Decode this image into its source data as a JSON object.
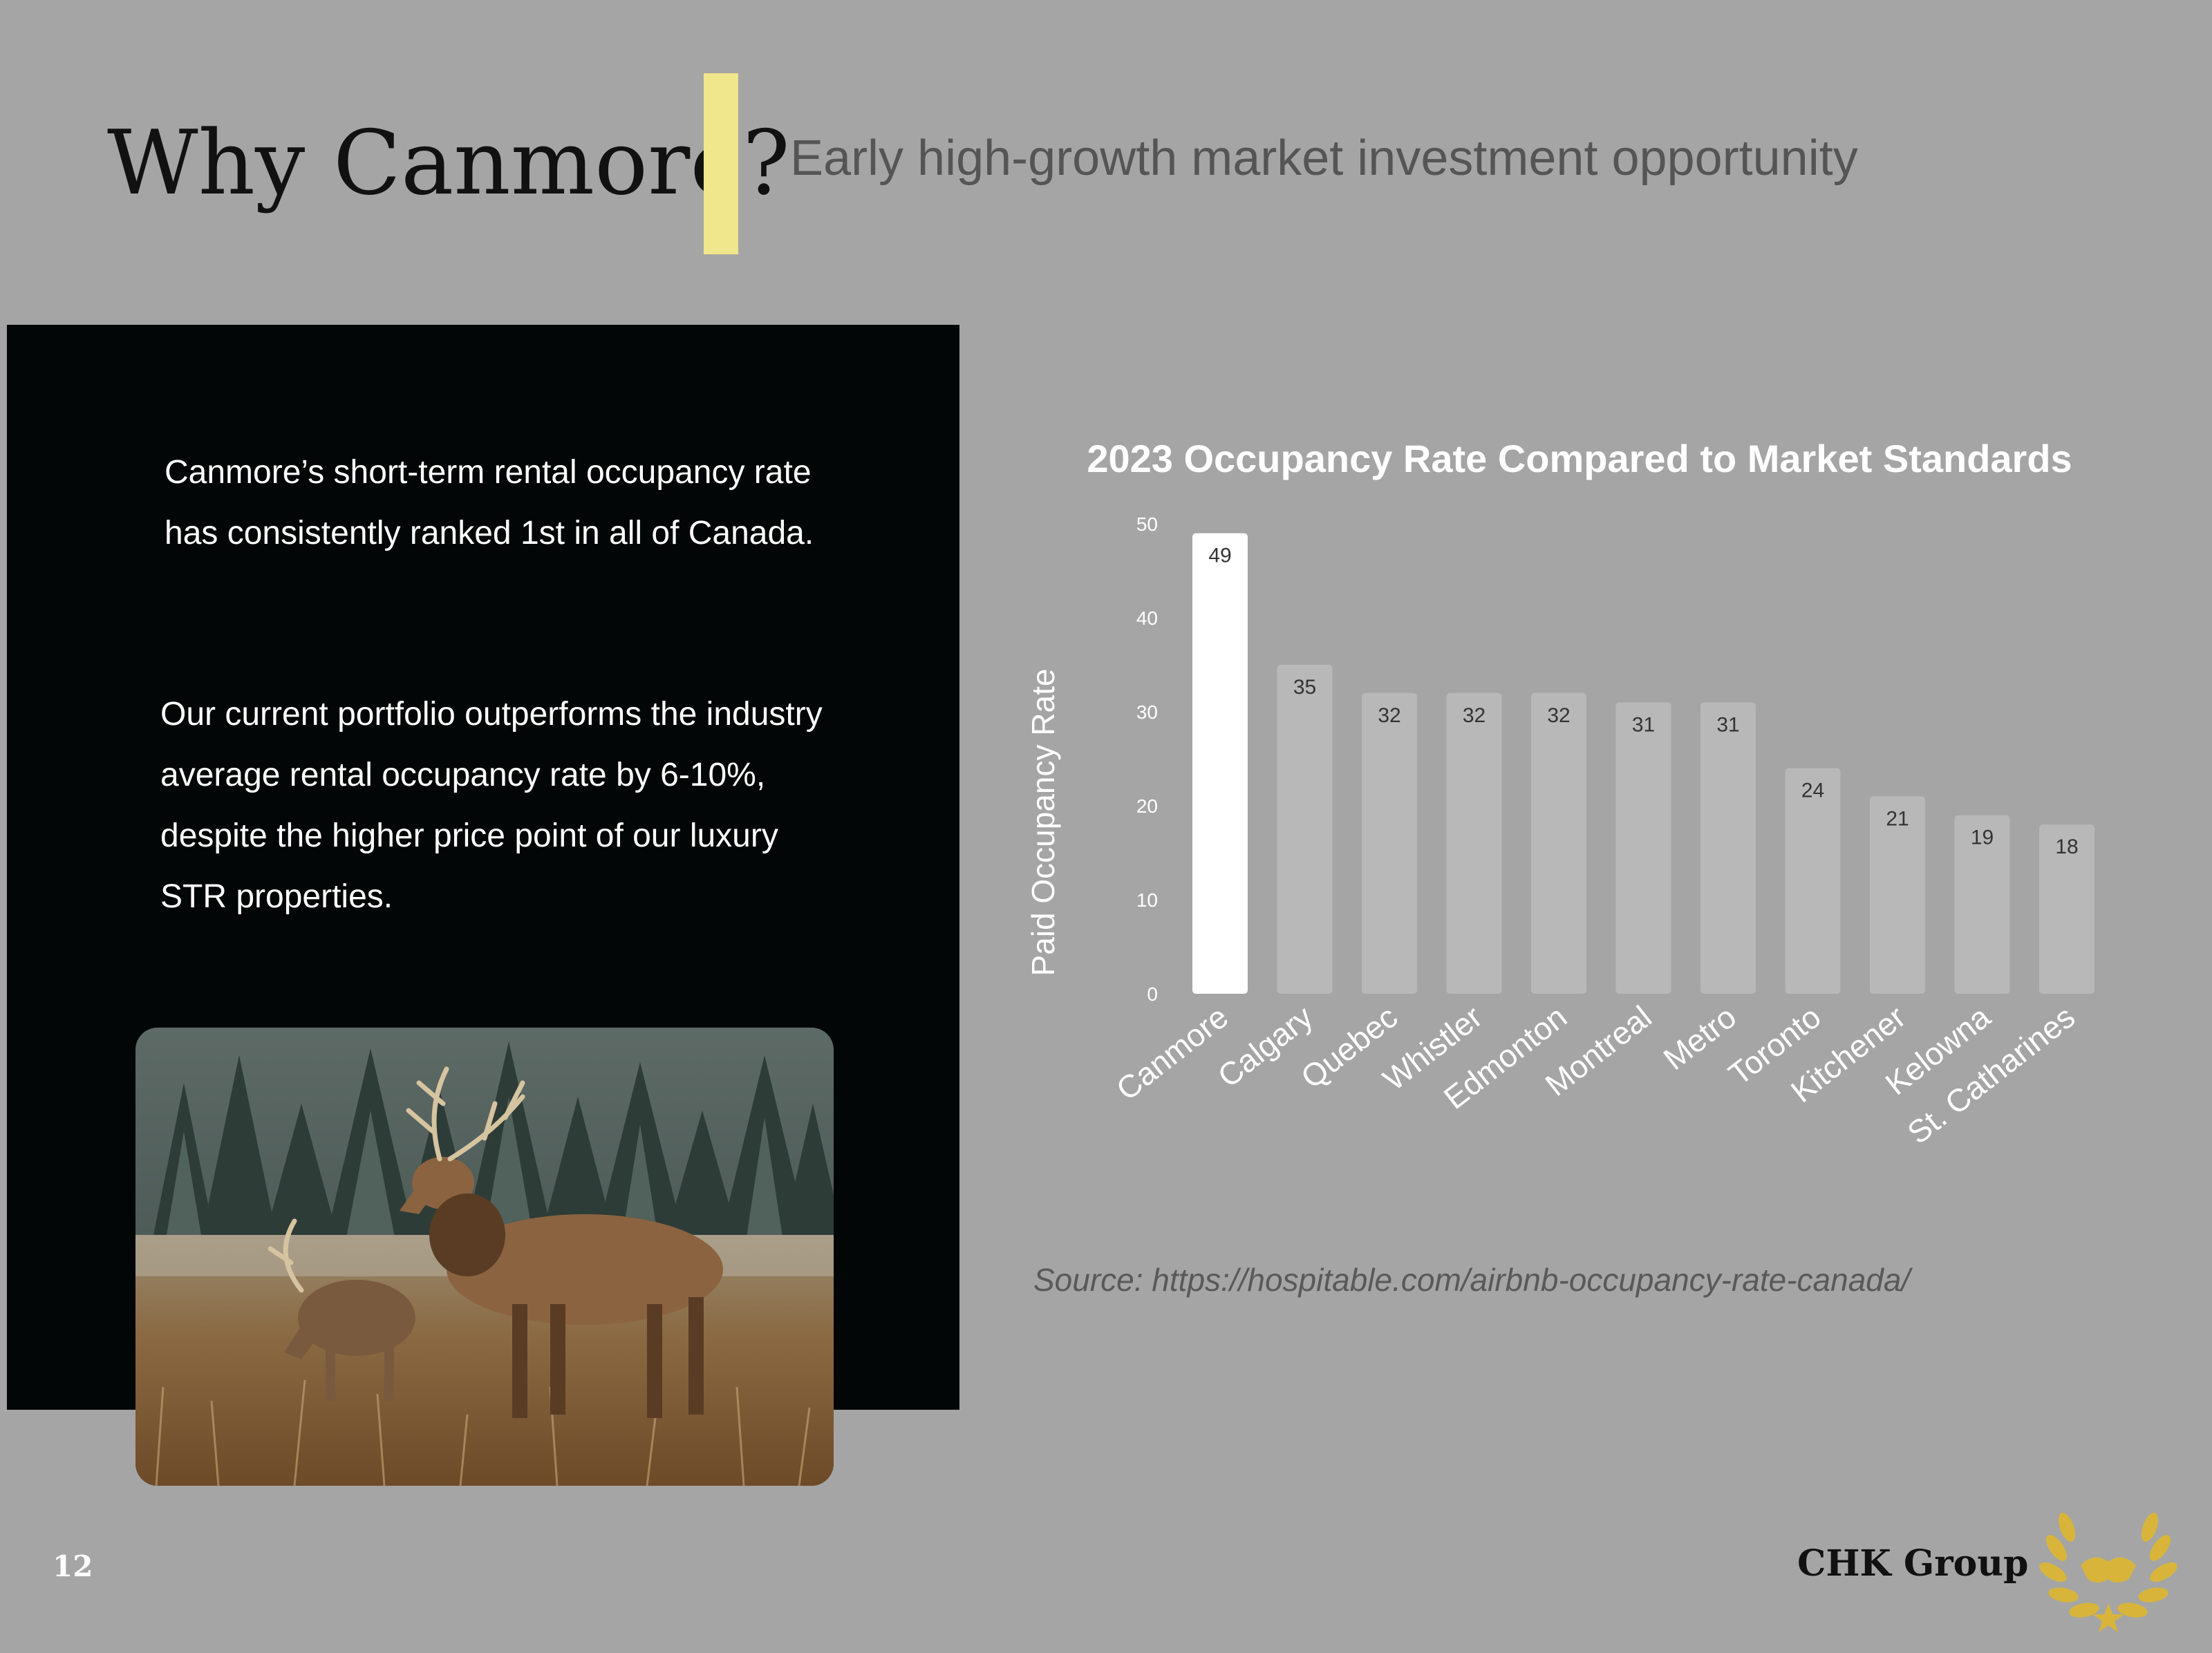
{
  "header": {
    "title": "Why Canmore?",
    "subtitle": "Early high-growth market investment opportunity"
  },
  "left_panel": {
    "paragraph1": "Canmore’s short-term rental occupancy rate has consistently ranked 1st in all of Canada.",
    "paragraph2": "Our current portfolio outperforms the industry average rental occupancy rate by 6-10%, despite the higher price point of our luxury STR properties.",
    "photo": "elk grazing in a meadow in front of evergreen trees"
  },
  "chart_data": {
    "type": "bar",
    "title": "2023 Occupancy Rate Compared to Market Standards",
    "xlabel": "",
    "ylabel": "Paid Occupancy Rate",
    "ylim": [
      0,
      50
    ],
    "yticks": [
      0,
      10,
      20,
      30,
      40,
      50
    ],
    "grid": false,
    "legend": "none",
    "categories": [
      "Canmore",
      "Calgary",
      "Quebec",
      "Whistler",
      "Edmonton",
      "Montreal",
      "Metro",
      "Toronto",
      "Kitchener",
      "Kelowna",
      "St. Catharines"
    ],
    "values": [
      49,
      35,
      32,
      32,
      32,
      31,
      31,
      24,
      21,
      19,
      18
    ],
    "colors": {
      "highlight": "#ffffff",
      "bar": "#b8b8b8",
      "label": "#333333",
      "axis_text": "#ffffff"
    }
  },
  "source": "Source: https://hospitable.com/airbnb-occupancy-rate-canada/",
  "footer": {
    "page_number": "12",
    "company": "CHK Group",
    "logo": "gold laurel wreath with handshake emblem"
  }
}
